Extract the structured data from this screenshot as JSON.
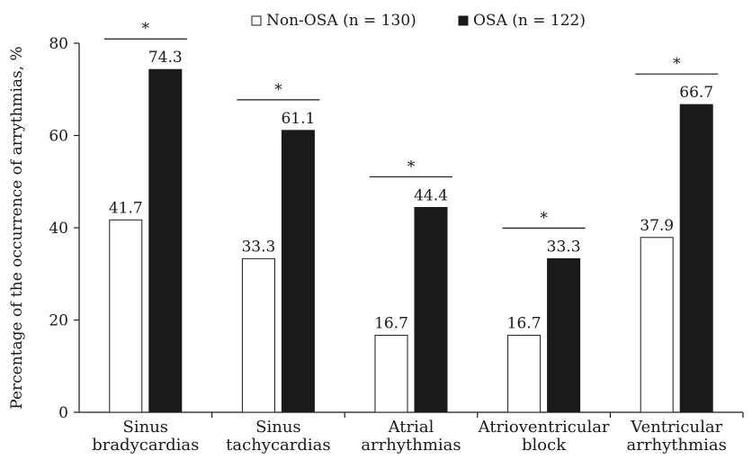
{
  "chart_data": {
    "type": "bar",
    "title": "",
    "xlabel": "",
    "ylabel": "Percentage of the occurrence of arrythmias, %",
    "ylim": [
      0,
      80
    ],
    "yticks": [
      0,
      20,
      40,
      60,
      80
    ],
    "grid": false,
    "legend_position": "top",
    "categories": [
      [
        "Sinus",
        "bradycardias"
      ],
      [
        "Sinus",
        "tachycardias"
      ],
      [
        "Atrial",
        "arrhythmias"
      ],
      [
        "Atrioventricular",
        "block"
      ],
      [
        "Ventricular",
        "arrhythmias"
      ]
    ],
    "series": [
      {
        "name": "Non-OSA",
        "n_label": "(n = 130)",
        "values": [
          41.7,
          33.3,
          16.7,
          16.7,
          37.9
        ],
        "value_labels": [
          "41.7",
          "33.3",
          "16.7",
          "16.7",
          "37.9"
        ],
        "fill": "#ffffff",
        "stroke": "#1a1a1a"
      },
      {
        "name": "OSA",
        "n_label": "(n = 122)",
        "values": [
          74.3,
          61.1,
          44.4,
          33.3,
          66.7
        ],
        "value_labels": [
          "74.3",
          "61.1",
          "44.4",
          "33.3",
          "66.7"
        ],
        "fill": "#1a1a1a",
        "stroke": "#1a1a1a"
      }
    ],
    "significance_marker": "*",
    "significant": [
      true,
      true,
      true,
      true,
      true
    ]
  }
}
